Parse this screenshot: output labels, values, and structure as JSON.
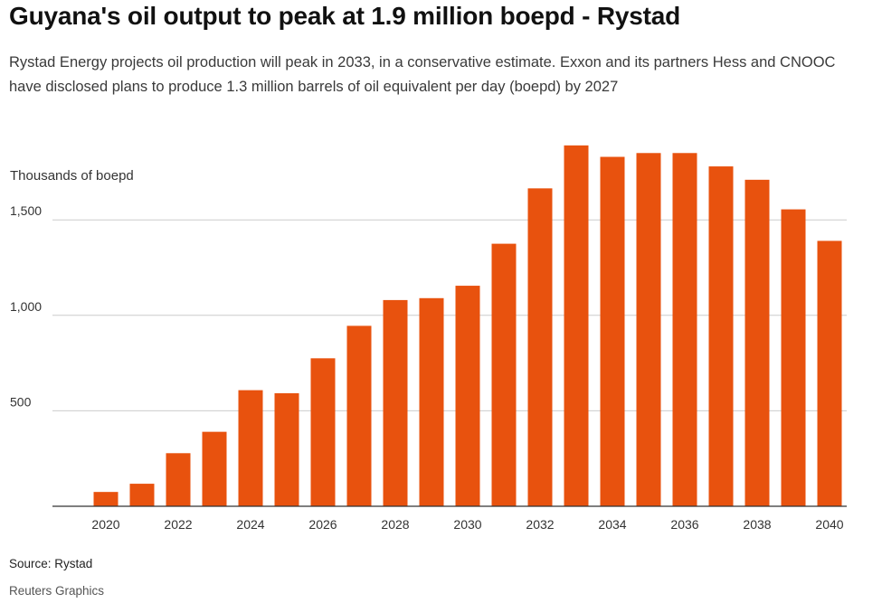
{
  "header": {
    "title": "Guyana's oil output to peak at 1.9 million boepd - Rystad",
    "subtitle": "Rystad Energy projects oil production will peak in 2033, in a conservative estimate. Exxon and its partners Hess and CNOOC have disclosed plans to produce 1.3 million barrels of oil equivalent per day (boepd) by 2027"
  },
  "footer": {
    "source": "Source: Rystad",
    "credit": "Reuters Graphics"
  },
  "colors": {
    "bar": "#e8520e",
    "grid": "#cccccc",
    "axis": "#333333"
  },
  "chart_data": {
    "type": "bar",
    "title": "Guyana's oil output to peak at 1.9 million boepd - Rystad",
    "xlabel": "",
    "ylabel": "Thousands of boepd",
    "categories": [
      "2020",
      "2021",
      "2022",
      "2023",
      "2024",
      "2025",
      "2026",
      "2027",
      "2028",
      "2029",
      "2030",
      "2031",
      "2032",
      "2033",
      "2034",
      "2035",
      "2036",
      "2037",
      "2038",
      "2039",
      "2040"
    ],
    "values": [
      75,
      118,
      278,
      390,
      608,
      592,
      775,
      945,
      1080,
      1090,
      1155,
      1375,
      1665,
      1890,
      1830,
      1850,
      1850,
      1780,
      1710,
      1555,
      1390
    ],
    "ylim": [
      0,
      1900
    ],
    "yticks": [
      500,
      1000,
      1500
    ],
    "ytick_labels": [
      "500",
      "1,000",
      "1,500"
    ],
    "xtick_labels": [
      "2020",
      "2022",
      "2024",
      "2026",
      "2028",
      "2030",
      "2032",
      "2034",
      "2036",
      "2038",
      "2040"
    ],
    "grid": true
  }
}
